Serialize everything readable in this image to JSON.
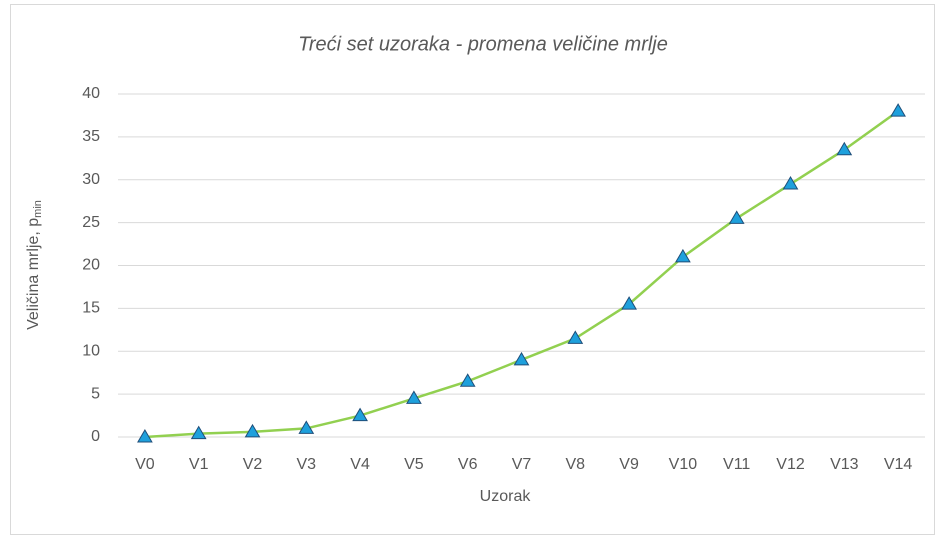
{
  "chart_data": {
    "type": "line",
    "title": "Trećі set uzoraka - promena veličine mrlje",
    "x_label": "Uzorak",
    "y_label": "Veličina mrlje, p",
    "y_label_sub": "min",
    "categories": [
      "V0",
      "V1",
      "V2",
      "V3",
      "V4",
      "V5",
      "V6",
      "V7",
      "V8",
      "V9",
      "V10",
      "V11",
      "V12",
      "V13",
      "V14"
    ],
    "series": [
      {
        "color": "#92d050",
        "marker_color": "#1ea0dc",
        "values": [
          0,
          0.4,
          0.6,
          1,
          2.5,
          4.5,
          6.5,
          9,
          11.5,
          15.5,
          21,
          25.5,
          29.5,
          33.5,
          38
        ]
      }
    ],
    "ylim": [
      0,
      40
    ],
    "yticks": [
      0,
      5,
      10,
      15,
      20,
      25,
      30,
      35,
      40
    ],
    "grid": true
  }
}
